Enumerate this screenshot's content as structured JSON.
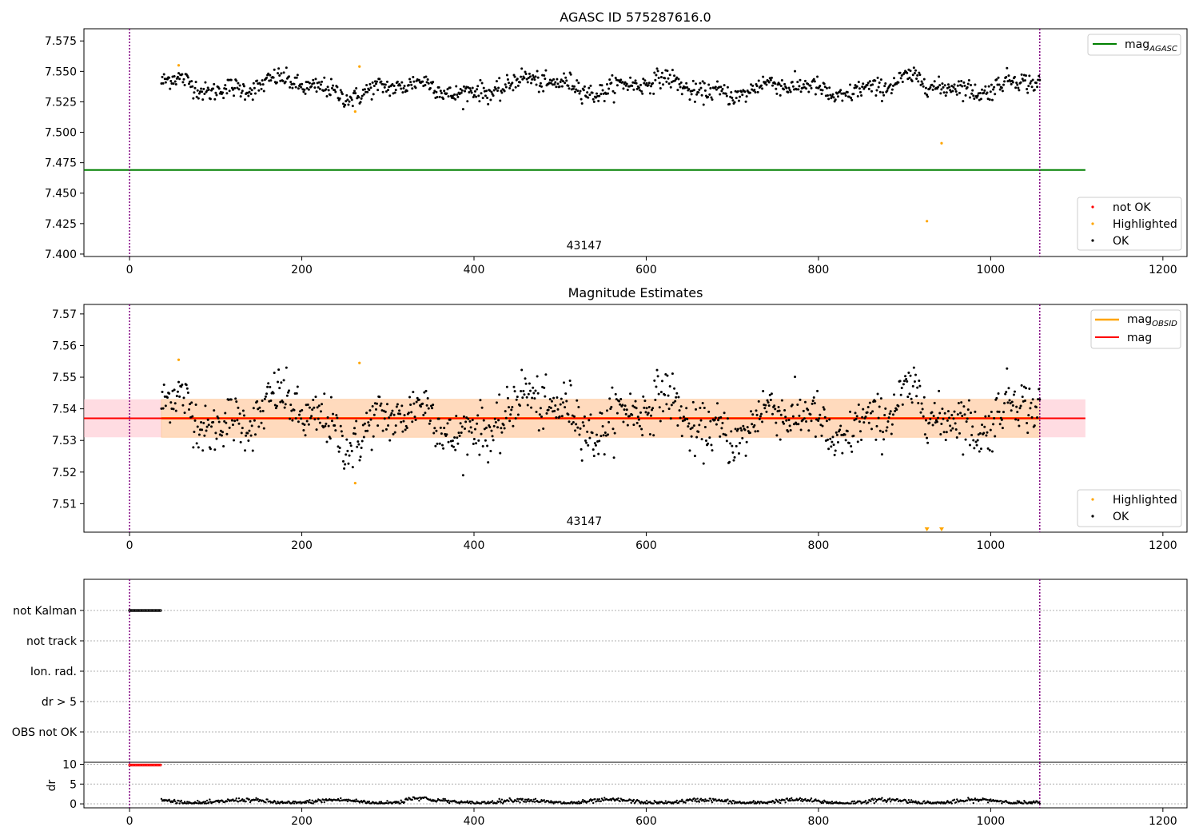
{
  "chart_data": [
    {
      "type": "scatter",
      "title": "AGASC ID 575287616.0",
      "xlim": [
        -53,
        1228
      ],
      "ylim": [
        7.398,
        7.585
      ],
      "x_ticks": [
        0,
        200,
        400,
        600,
        800,
        1000,
        1200
      ],
      "y_ticks": [
        7.4,
        7.425,
        7.45,
        7.475,
        7.5,
        7.525,
        7.55,
        7.575
      ],
      "y_tick_labels": [
        "7.400",
        "7.425",
        "7.450",
        "7.475",
        "7.500",
        "7.525",
        "7.550",
        "7.575"
      ],
      "obsid_label": "43147",
      "obsid_label_x": 528,
      "vlines": [
        0,
        1057
      ],
      "hline": {
        "name": "mag",
        "subscript": "AGASC",
        "value": 7.469,
        "x_range": [
          -53,
          1110
        ],
        "color": "#008000"
      },
      "ok_series": {
        "name": "OK",
        "n": 1020,
        "x_start": 37,
        "x_end": 1057,
        "color": "#000000"
      },
      "highlighted": {
        "name": "Highlighted",
        "color": "#ffa500",
        "points": [
          [
            57,
            7.555
          ],
          [
            262,
            7.517
          ],
          [
            267,
            7.554
          ],
          [
            926,
            7.427
          ],
          [
            943,
            7.491
          ]
        ]
      },
      "not_ok": {
        "name": "not OK",
        "color": "#ff0000",
        "points": []
      },
      "legend_upper": [
        "mag_AGASC"
      ],
      "legend_lower": [
        "not OK",
        "Highlighted",
        "OK"
      ],
      "legend_upper_loc": "upper right",
      "legend_lower_loc": "lower right"
    },
    {
      "type": "scatter",
      "title": "Magnitude Estimates",
      "xlim": [
        -53,
        1228
      ],
      "ylim": [
        7.501,
        7.573
      ],
      "x_ticks": [
        0,
        200,
        400,
        600,
        800,
        1000,
        1200
      ],
      "y_ticks": [
        7.51,
        7.52,
        7.53,
        7.54,
        7.55,
        7.56,
        7.57
      ],
      "y_tick_labels": [
        "7.51",
        "7.52",
        "7.53",
        "7.54",
        "7.55",
        "7.56",
        "7.57"
      ],
      "obsid_label": "43147",
      "obsid_label_x": 528,
      "vlines": [
        0,
        1057
      ],
      "mag_line": {
        "name": "mag",
        "value": 7.537,
        "x_range": [
          -53,
          1110
        ],
        "color": "#ff0000"
      },
      "mag_obsid_line": {
        "name": "mag",
        "subscript": "OBSID",
        "value": 7.537,
        "x_range": [
          37,
          1057
        ],
        "color": "#ffa500"
      },
      "band_outer": {
        "low": 7.531,
        "high": 7.543,
        "x_range": [
          -53,
          1110
        ],
        "color": "#ffc0cb"
      },
      "band_inner": {
        "low": 7.531,
        "high": 7.543,
        "x_range": [
          37,
          1057
        ],
        "color": "#ffdab9"
      },
      "ok_series": {
        "name": "OK",
        "n": 1020,
        "x_start": 37,
        "x_end": 1057,
        "color": "#000000"
      },
      "highlighted": {
        "name": "Highlighted",
        "color": "#ffa500",
        "points": [
          [
            57,
            7.5555
          ],
          [
            262,
            7.5165
          ],
          [
            267,
            7.5545
          ]
        ]
      },
      "offscale_markers": [
        926,
        943
      ],
      "legend_upper": [
        "mag_OBSID",
        "mag"
      ],
      "legend_lower": [
        "Highlighted",
        "OK"
      ],
      "legend_upper_loc": "upper right",
      "legend_lower_loc": "lower right"
    },
    {
      "type": "scatter",
      "title": "",
      "xlim": [
        -53,
        1228
      ],
      "y_categories": [
        "not Kalman",
        "not track",
        "Ion. rad.",
        "dr > 5",
        "OBS not OK"
      ],
      "flags": {
        "not Kalman": [
          0,
          37
        ],
        "not track": [],
        "Ion. rad.": [],
        "dr > 5": [],
        "OBS not OK": []
      },
      "vlines": [
        0,
        1057
      ]
    },
    {
      "type": "scatter",
      "title": "",
      "xlim": [
        -53,
        1228
      ],
      "ylim": [
        -1,
        10.5
      ],
      "ylabel": "dr",
      "x_ticks": [
        0,
        200,
        400,
        600,
        800,
        1000,
        1200
      ],
      "y_ticks": [
        0,
        5,
        10
      ],
      "y_tick_labels": [
        "0",
        "5",
        "10"
      ],
      "red_points": {
        "value": 9.8,
        "x_range": [
          0,
          37
        ]
      },
      "ok_series": {
        "x_start": 37,
        "x_end": 1057,
        "value_mean": 0.6
      },
      "vlines": [
        0,
        1057
      ]
    }
  ]
}
